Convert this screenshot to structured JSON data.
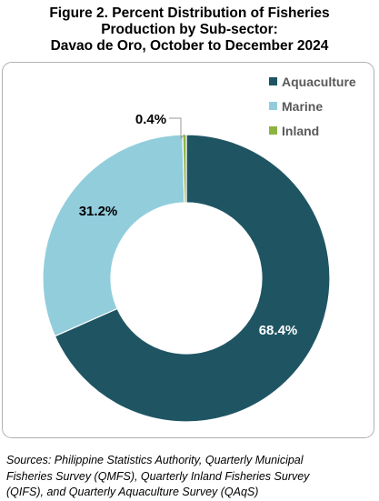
{
  "title_lines": [
    "Figure 2. Percent Distribution of Fisheries",
    "Production by Sub-sector:",
    "Davao de Oro, October to December 2024"
  ],
  "source_lines": [
    "Sources: Philippine Statistics Authority, Quarterly Municipal",
    "Fisheries Survey (QMFS), Quarterly Inland Fisheries Survey",
    "(QIFS), and Quarterly Aquaculture Survey (QAqS)"
  ],
  "chart_data": {
    "type": "pie",
    "donut": true,
    "title": "Figure 2. Percent Distribution of Fisheries Production by Sub-sector: Davao de Oro, October to December 2024",
    "categories": [
      "Aquaculture",
      "Marine",
      "Inland"
    ],
    "values": [
      68.4,
      31.2,
      0.4
    ],
    "data_labels": [
      "68.4%",
      "31.2%",
      "0.4%"
    ],
    "colors": [
      "#1f5563",
      "#92cddc",
      "#8db440"
    ],
    "legend": "top-right",
    "unit": "%"
  }
}
